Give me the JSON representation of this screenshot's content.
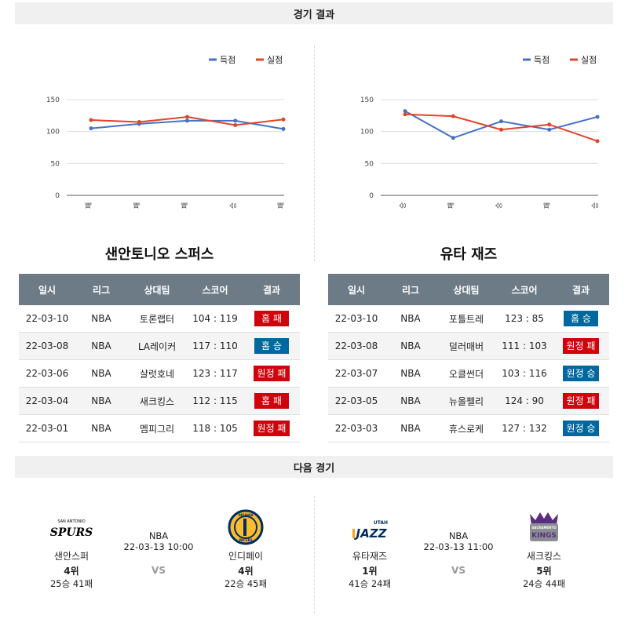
{
  "sections": {
    "results_title": "경기 결과",
    "next_title": "다음 경기"
  },
  "colors": {
    "score": "#4472c4",
    "conceded": "#e0442b",
    "win_badge": "#00689e",
    "loss_badge": "#d0020a",
    "header_bg": "#6d7b86"
  },
  "charts": [
    {
      "legend": {
        "scored": "득점",
        "conceded": "실점"
      },
      "y_ticks": [
        "150",
        "100",
        "50",
        "0"
      ],
      "x_labels": [
        "패",
        "패",
        "패",
        "승",
        "패"
      ]
    },
    {
      "legend": {
        "scored": "득점",
        "conceded": "실점"
      },
      "y_ticks": [
        "150",
        "100",
        "50",
        "0"
      ],
      "x_labels": [
        "승",
        "패",
        "승",
        "패",
        "승"
      ]
    }
  ],
  "chart_data": [
    {
      "type": "line",
      "categories": [
        "패",
        "패",
        "패",
        "승",
        "패"
      ],
      "ylim": [
        0,
        150
      ],
      "series": [
        {
          "name": "득점",
          "values": [
            105,
            112,
            117,
            117,
            104
          ]
        },
        {
          "name": "실점",
          "values": [
            118,
            115,
            123,
            110,
            119
          ]
        }
      ]
    },
    {
      "type": "line",
      "categories": [
        "승",
        "패",
        "승",
        "패",
        "승"
      ],
      "ylim": [
        0,
        150
      ],
      "series": [
        {
          "name": "득점",
          "values": [
            132,
            90,
            116,
            103,
            123
          ]
        },
        {
          "name": "실점",
          "values": [
            127,
            124,
            103,
            111,
            85
          ]
        }
      ]
    }
  ],
  "teams": [
    {
      "title": "샌안토니오 스퍼스",
      "headers": [
        "일시",
        "리그",
        "상대팀",
        "스코어",
        "결과"
      ],
      "rows": [
        {
          "date": "22-03-10",
          "league": "NBA",
          "opponent": "토론랩터",
          "score": "104 : 119",
          "result": "홈 패",
          "win": false
        },
        {
          "date": "22-03-08",
          "league": "NBA",
          "opponent": "LA레이커",
          "score": "117 : 110",
          "result": "홈 승",
          "win": true
        },
        {
          "date": "22-03-06",
          "league": "NBA",
          "opponent": "샬럿호네",
          "score": "123 : 117",
          "result": "원정 패",
          "win": false
        },
        {
          "date": "22-03-04",
          "league": "NBA",
          "opponent": "새크킹스",
          "score": "112 : 115",
          "result": "홈 패",
          "win": false
        },
        {
          "date": "22-03-01",
          "league": "NBA",
          "opponent": "멤피그리",
          "score": "118 : 105",
          "result": "원정 패",
          "win": false
        }
      ]
    },
    {
      "title": "유타 재즈",
      "headers": [
        "일시",
        "리그",
        "상대팀",
        "스코어",
        "결과"
      ],
      "rows": [
        {
          "date": "22-03-10",
          "league": "NBA",
          "opponent": "포틀트레",
          "score": "123 : 85",
          "result": "홈 승",
          "win": true
        },
        {
          "date": "22-03-08",
          "league": "NBA",
          "opponent": "덜러매버",
          "score": "111 : 103",
          "result": "원정 패",
          "win": false
        },
        {
          "date": "22-03-07",
          "league": "NBA",
          "opponent": "오클썬더",
          "score": "103 : 116",
          "result": "원정 승",
          "win": true
        },
        {
          "date": "22-03-05",
          "league": "NBA",
          "opponent": "뉴올펠리",
          "score": "124 : 90",
          "result": "원정 패",
          "win": false
        },
        {
          "date": "22-03-03",
          "league": "NBA",
          "opponent": "휴스로케",
          "score": "127 : 132",
          "result": "원정 승",
          "win": true
        }
      ]
    }
  ],
  "next_games": [
    {
      "league": "NBA",
      "datetime": "22-03-13 10:00",
      "vs": "VS",
      "home": {
        "name": "샌안스퍼",
        "rank": "4위",
        "record": "25승 41패",
        "logo_text": "SPURS",
        "logo_sub": "SAN ANTONIO"
      },
      "away": {
        "name": "인디페이",
        "rank": "4위",
        "record": "22승 45패",
        "logo_text": "PACERS",
        "logo_sub": "INDIANA"
      }
    },
    {
      "league": "NBA",
      "datetime": "22-03-13 11:00",
      "vs": "VS",
      "home": {
        "name": "유타재즈",
        "rank": "1위",
        "record": "41승 24패",
        "logo_text": "JAZZ",
        "logo_sub": "UTAH"
      },
      "away": {
        "name": "새크킹스",
        "rank": "5위",
        "record": "24승 44패",
        "logo_text": "KINGS",
        "logo_sub": "SACRAMENTO"
      }
    }
  ]
}
